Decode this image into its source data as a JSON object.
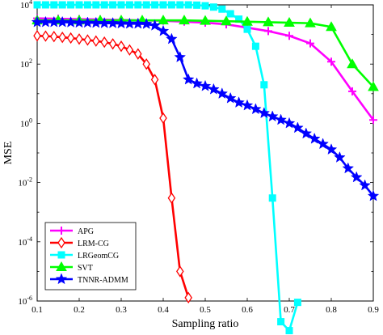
{
  "chart_data": {
    "type": "line",
    "xlabel": "Sampling ratio",
    "ylabel": "MSE",
    "x_ticks": [
      "0.1",
      "0.2",
      "0.3",
      "0.4",
      "0.5",
      "0.6",
      "0.7",
      "0.8",
      "0.9"
    ],
    "y_ticks": [
      {
        "value": 10000.0,
        "base": "10",
        "exp": "4"
      },
      {
        "value": 100.0,
        "base": "10",
        "exp": "2"
      },
      {
        "value": 1.0,
        "base": "10",
        "exp": "0"
      },
      {
        "value": 0.01,
        "base": "10",
        "exp": "-2"
      },
      {
        "value": 0.0001,
        "base": "10",
        "exp": "-4"
      },
      {
        "value": 1e-06,
        "base": "10",
        "exp": "-6"
      }
    ],
    "xlim": [
      0.1,
      0.9
    ],
    "ylim": [
      1e-06,
      10000.0
    ],
    "yscale": "log",
    "grid": false,
    "legend_position": "bottom-left",
    "series": [
      {
        "name": "APG",
        "color": "#ff00ff",
        "marker": "plus",
        "x": [
          0.1,
          0.15,
          0.2,
          0.25,
          0.3,
          0.35,
          0.4,
          0.45,
          0.5,
          0.55,
          0.6,
          0.65,
          0.7,
          0.75,
          0.8,
          0.85,
          0.9
        ],
        "y": [
          3500,
          3400,
          3300,
          3200,
          3100,
          3000,
          2900,
          2700,
          2500,
          2200,
          1700,
          1300,
          900,
          500,
          120,
          12,
          1.3
        ]
      },
      {
        "name": "LRM-CG",
        "color": "#ff0000",
        "marker": "diamond",
        "x": [
          0.1,
          0.12,
          0.14,
          0.16,
          0.18,
          0.2,
          0.22,
          0.24,
          0.26,
          0.28,
          0.3,
          0.32,
          0.34,
          0.36,
          0.38,
          0.4,
          0.42,
          0.44,
          0.46
        ],
        "y": [
          900,
          880,
          850,
          800,
          760,
          700,
          650,
          600,
          550,
          480,
          400,
          300,
          220,
          100,
          30,
          1.5,
          0.003,
          1e-05,
          1.3e-06
        ]
      },
      {
        "name": "LRGeomCG",
        "color": "#00ffff",
        "marker": "square",
        "x": [
          0.1,
          0.12,
          0.14,
          0.16,
          0.18,
          0.2,
          0.22,
          0.24,
          0.26,
          0.28,
          0.3,
          0.32,
          0.34,
          0.36,
          0.38,
          0.4,
          0.42,
          0.44,
          0.46,
          0.48,
          0.5,
          0.52,
          0.54,
          0.56,
          0.58,
          0.6,
          0.62,
          0.64,
          0.66,
          0.68,
          0.7,
          0.72
        ],
        "y": [
          10000,
          10000,
          10000,
          10000,
          10000,
          10000,
          10000,
          10000,
          10000,
          10000,
          10000,
          10000,
          10000,
          10000,
          10000,
          10000,
          10000,
          10000,
          10000,
          9800,
          9300,
          8400,
          7200,
          5000,
          3300,
          1500,
          400,
          20,
          0.003,
          2e-07,
          1e-07,
          9e-07
        ]
      },
      {
        "name": "SVT",
        "color": "#00ff00",
        "marker": "triangle",
        "x": [
          0.1,
          0.15,
          0.2,
          0.25,
          0.3,
          0.35,
          0.4,
          0.45,
          0.5,
          0.55,
          0.6,
          0.65,
          0.7,
          0.75,
          0.8,
          0.85,
          0.9
        ],
        "y": [
          3000,
          3000,
          3000,
          3000,
          3000,
          3000,
          3000,
          3000,
          2900,
          2800,
          2700,
          2600,
          2500,
          2400,
          1800,
          100,
          17
        ]
      },
      {
        "name": "TNNR-ADMM",
        "color": "#0000ff",
        "marker": "star",
        "x": [
          0.1,
          0.12,
          0.14,
          0.16,
          0.18,
          0.2,
          0.22,
          0.24,
          0.26,
          0.28,
          0.3,
          0.32,
          0.34,
          0.36,
          0.38,
          0.4,
          0.42,
          0.44,
          0.46,
          0.48,
          0.5,
          0.52,
          0.54,
          0.56,
          0.58,
          0.6,
          0.62,
          0.64,
          0.66,
          0.68,
          0.7,
          0.72,
          0.74,
          0.76,
          0.78,
          0.8,
          0.82,
          0.84,
          0.86,
          0.88,
          0.9
        ],
        "y": [
          2600,
          2600,
          2600,
          2600,
          2550,
          2500,
          2500,
          2450,
          2400,
          2400,
          2350,
          2300,
          2300,
          2250,
          2000,
          1300,
          700,
          170,
          30,
          22,
          18,
          14,
          10,
          7,
          5,
          4,
          3,
          2.2,
          1.7,
          1.3,
          1,
          0.7,
          0.45,
          0.3,
          0.2,
          0.13,
          0.07,
          0.03,
          0.015,
          0.008,
          0.0035
        ]
      }
    ]
  }
}
